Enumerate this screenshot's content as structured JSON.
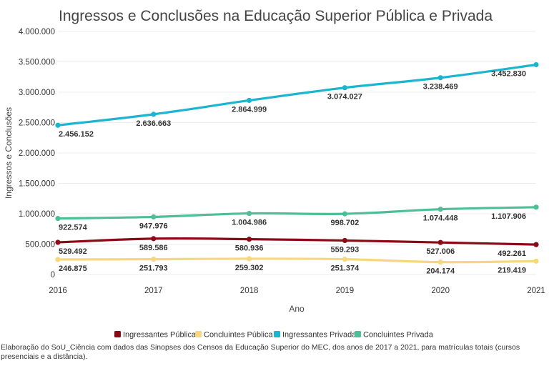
{
  "chart_data": {
    "type": "line",
    "title": "Ingressos e Conclusões na Educação Superior Pública e Privada",
    "xlabel": "Ano",
    "ylabel": "Ingressos e Conclusões",
    "x": [
      2016,
      2017,
      2018,
      2019,
      2020,
      2021
    ],
    "x_tick_labels": [
      "2016",
      "2017",
      "2018",
      "2019",
      "2020",
      "2021"
    ],
    "ylim": [
      0,
      4000000
    ],
    "y_ticks": [
      0,
      500000,
      1000000,
      1500000,
      2000000,
      2500000,
      3000000,
      3500000,
      4000000
    ],
    "y_tick_labels": [
      "0",
      "500.000",
      "1.000.000",
      "1.500.000",
      "2.000.000",
      "2.500.000",
      "3.000.000",
      "3.500.000",
      "4.000.000"
    ],
    "grid": true,
    "legend_position": "bottom",
    "series": [
      {
        "name": "Ingressantes Pública",
        "color": "#8b0a16",
        "values": [
          529492,
          589586,
          580936,
          559293,
          527006,
          492261
        ],
        "labels": [
          "529.492",
          "589.586",
          "580.936",
          "559.293",
          "527.006",
          "492.261"
        ]
      },
      {
        "name": "Concluintes Pública",
        "color": "#f7d77e",
        "values": [
          246875,
          251793,
          259302,
          251374,
          204174,
          219419
        ],
        "labels": [
          "246.875",
          "251.793",
          "259.302",
          "251.374",
          "204.174",
          "219.419"
        ]
      },
      {
        "name": "Ingressantes Privada",
        "color": "#1cb5d0",
        "values": [
          2456152,
          2636663,
          2864999,
          3074027,
          3238469,
          3452830
        ],
        "labels": [
          "2.456.152",
          "2.636.663",
          "2.864.999",
          "3.074.027",
          "3.238.469",
          "3.452.830"
        ]
      },
      {
        "name": "Concluintes Privada",
        "color": "#4dbf97",
        "values": [
          922574,
          947976,
          1004986,
          998702,
          1074448,
          1107906
        ],
        "labels": [
          "922.574",
          "947.976",
          "1.004.986",
          "998.702",
          "1.074.448",
          "1.107.906"
        ]
      }
    ],
    "source": "Elaboração do SoU_Ciência com dados das Sinopses dos Censos da Educação Superior do MEC, dos anos de 2017 a 2021, para matrículas totais (cursos presenciais e a distância)."
  }
}
